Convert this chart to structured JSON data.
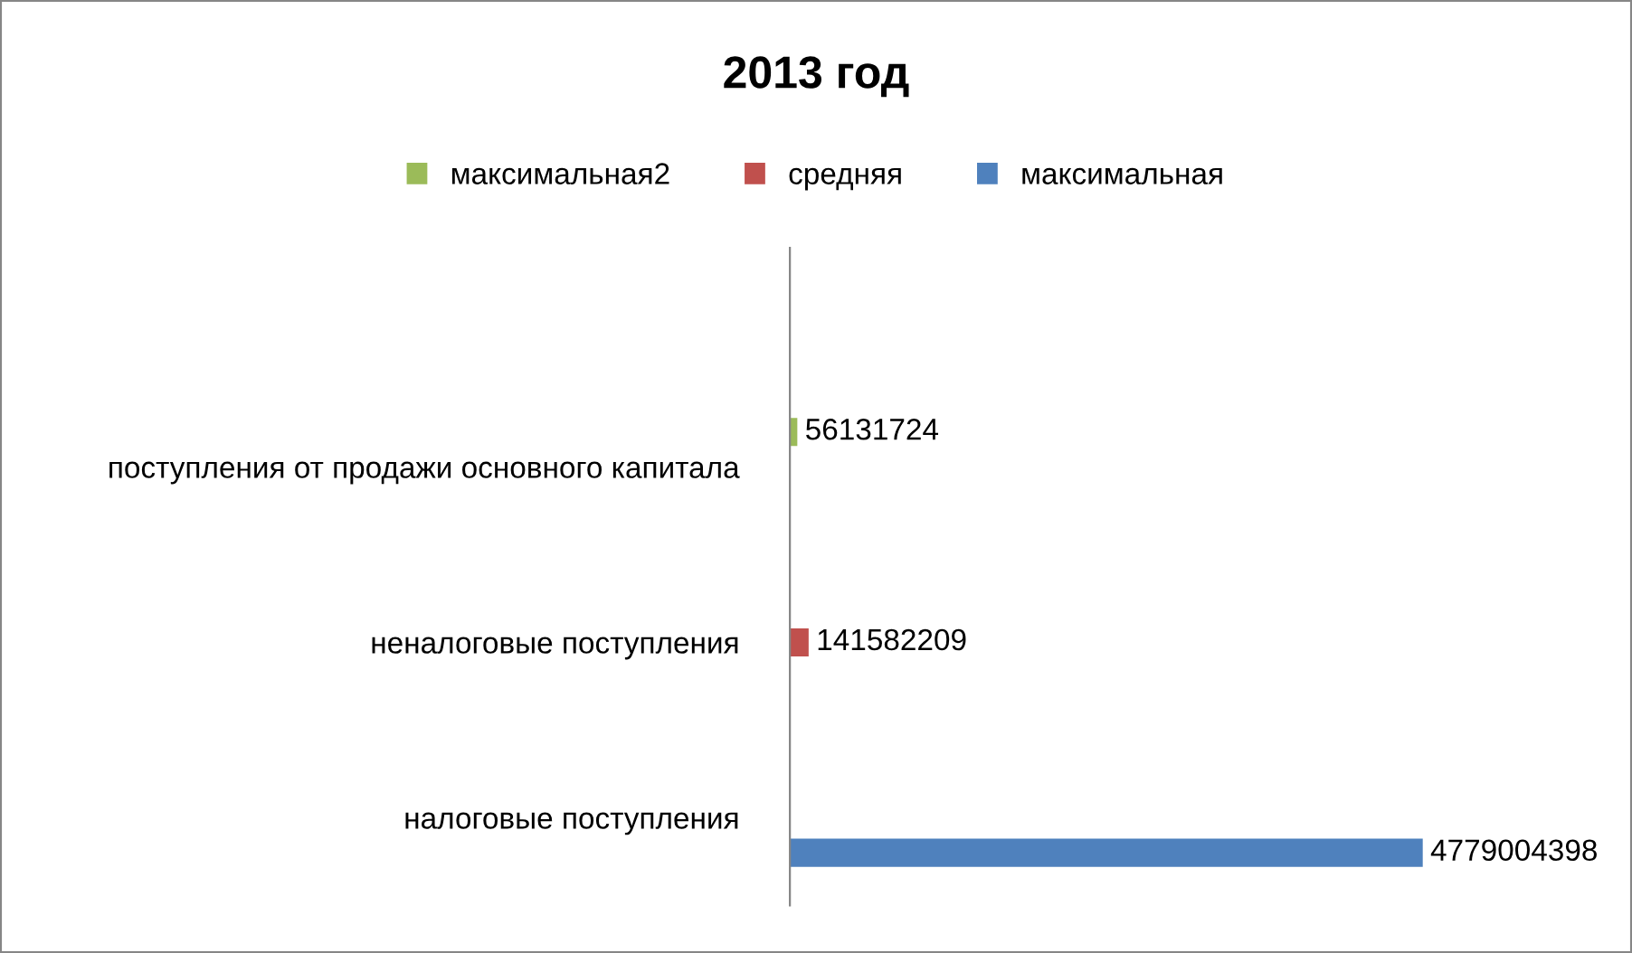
{
  "chart_data": {
    "type": "bar",
    "orientation": "horizontal",
    "title": "2013 год",
    "categories": [
      "поступления от продажи основного капитала",
      "неналоговые поступления",
      "налоговые поступления"
    ],
    "series": [
      {
        "name": "максимальная",
        "color": "#4f81bd",
        "values": [
          null,
          null,
          4779004398
        ]
      },
      {
        "name": "средняя",
        "color": "#c0504d",
        "values": [
          null,
          141582209,
          null
        ]
      },
      {
        "name": "максимальная2",
        "color": "#9bbb59",
        "values": [
          56131724,
          null,
          null
        ]
      }
    ],
    "data_labels": true,
    "legend": "top",
    "grid": false
  }
}
